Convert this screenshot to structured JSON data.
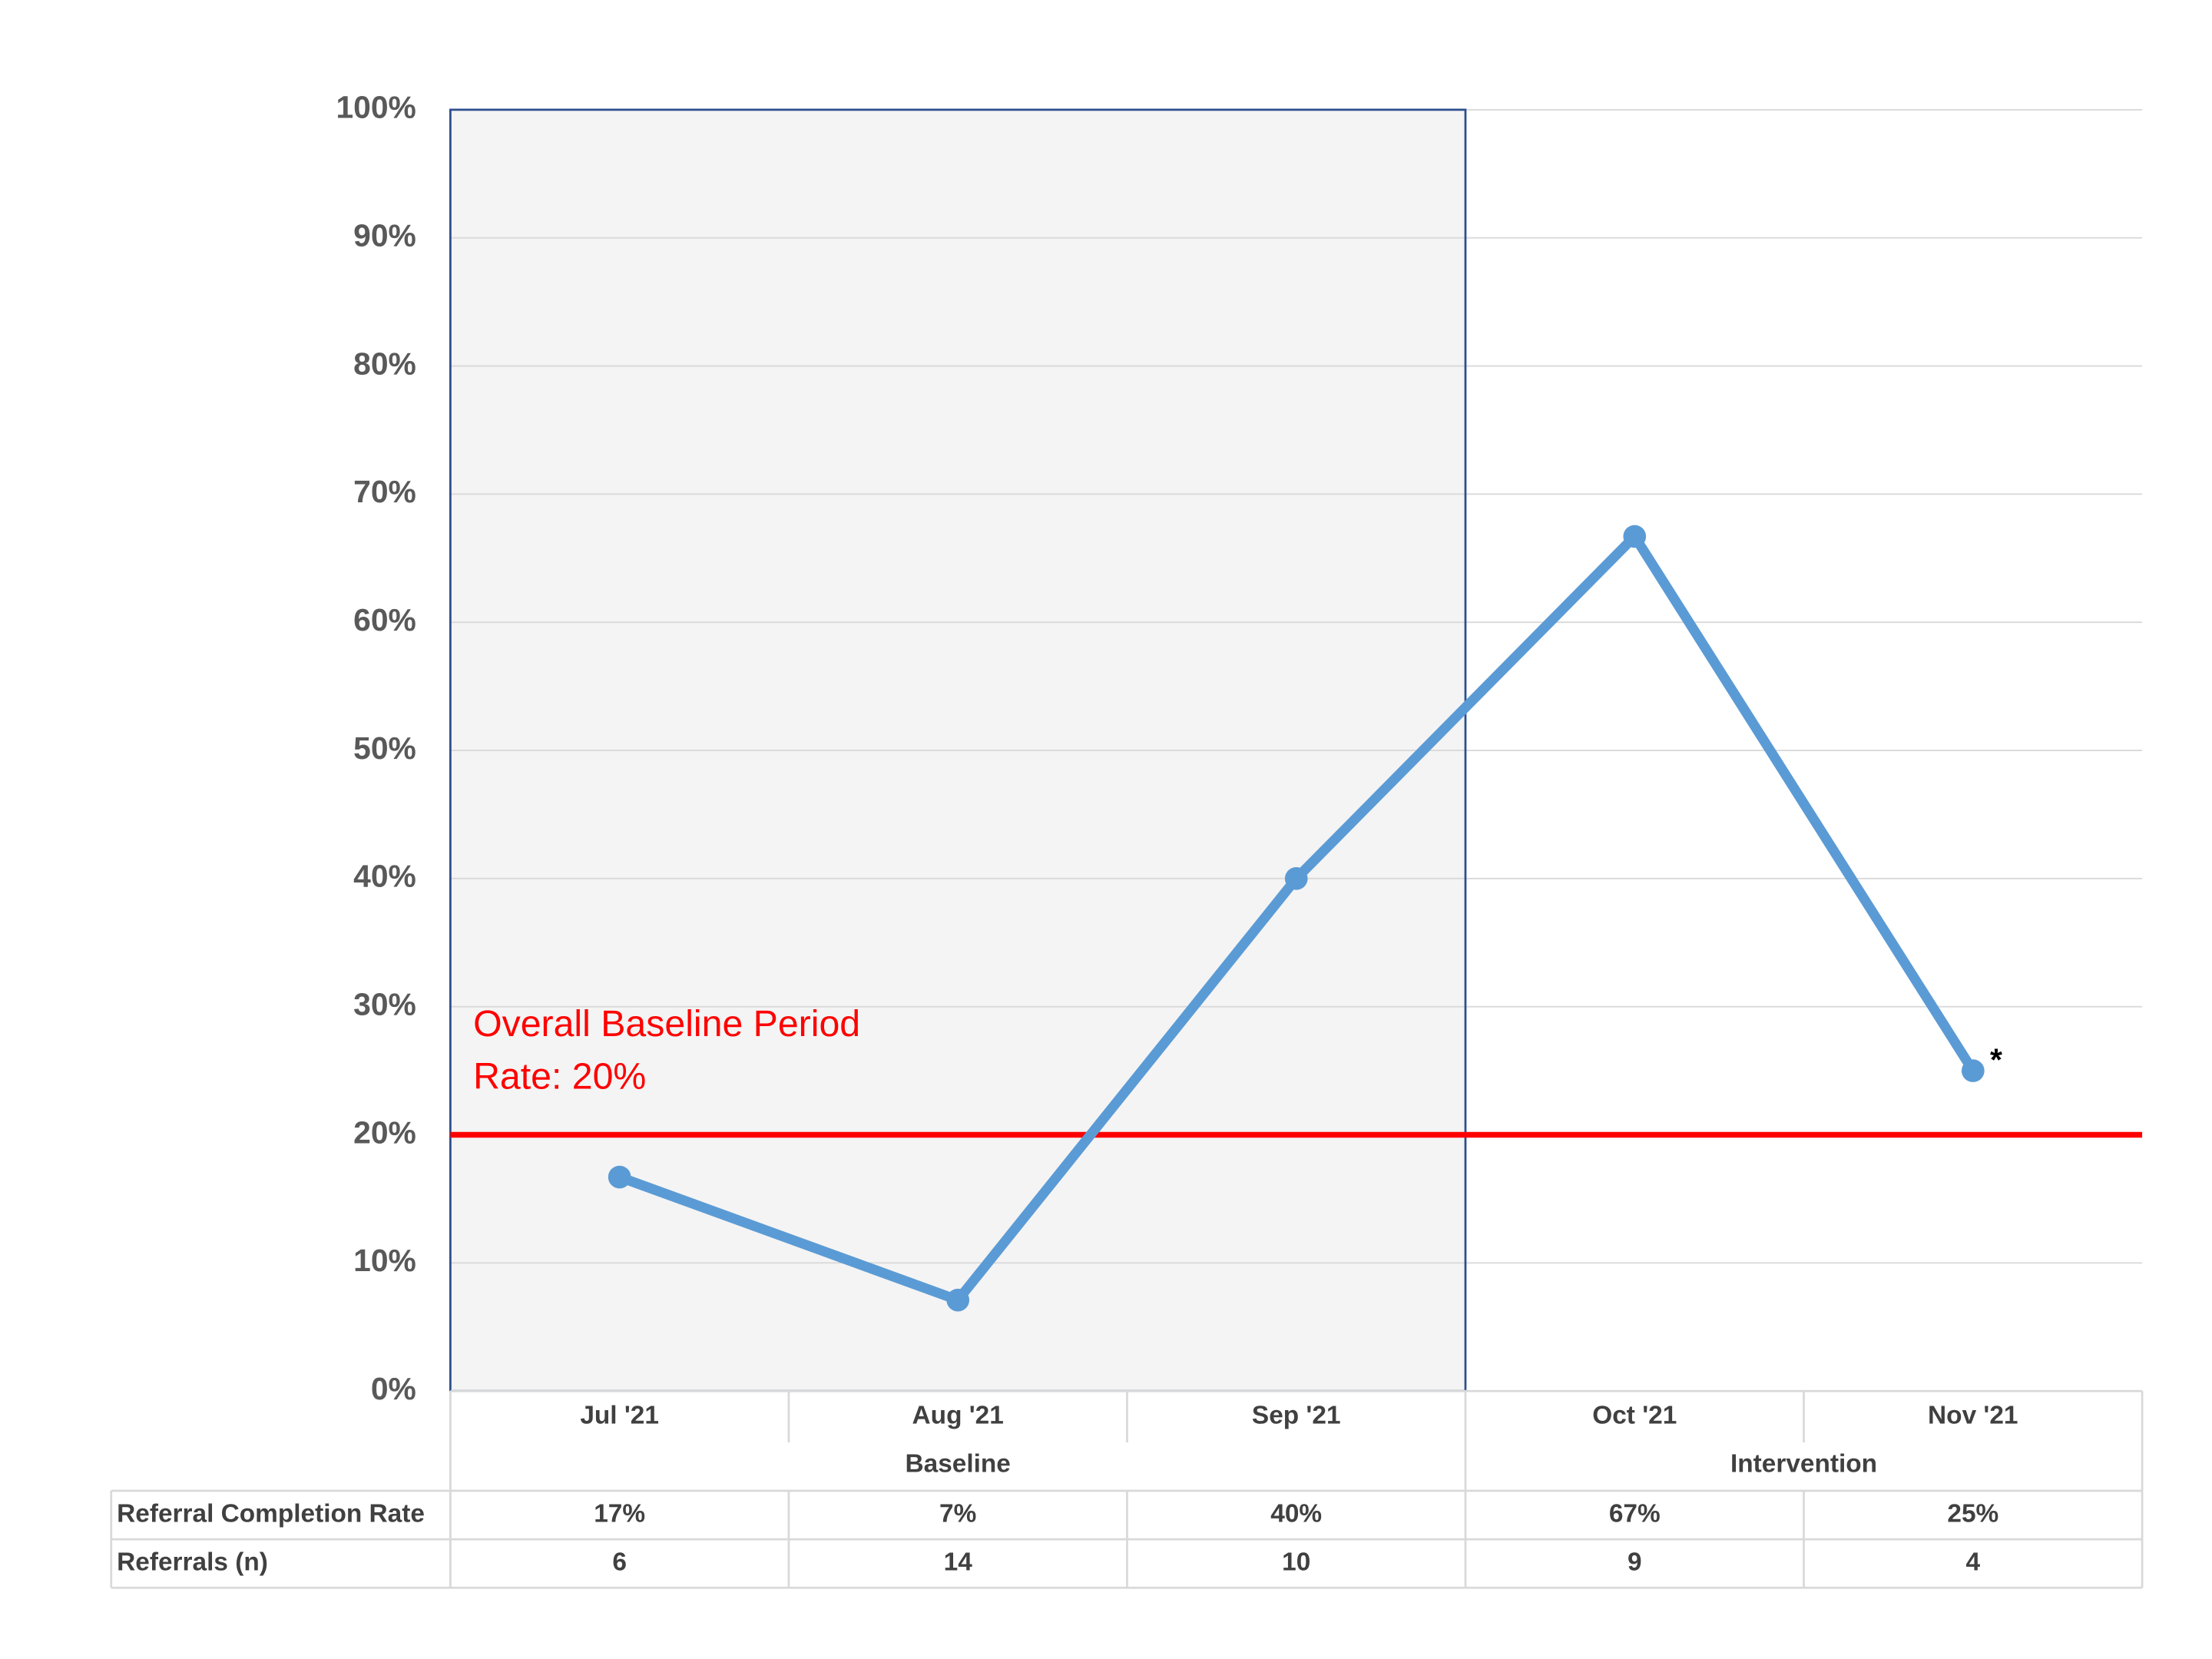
{
  "chart_data": {
    "type": "line",
    "categories": [
      "Jul '21",
      "Aug '21",
      "Sep '21",
      "Oct '21",
      "Nov '21"
    ],
    "phases": [
      "Baseline",
      "Baseline",
      "Baseline",
      "Intervention",
      "Intervention"
    ],
    "shaded_phase": "Baseline",
    "series": [
      {
        "name": "Referral Completion Rate",
        "color": "#5b9bd5",
        "values": [
          16.7,
          7.1,
          40,
          66.7,
          25
        ],
        "value_labels": [
          "17%",
          "7%",
          "40%",
          "67%",
          "25%"
        ]
      }
    ],
    "table_rows": [
      {
        "label": "Referrals (n)",
        "values": [
          6,
          14,
          10,
          9,
          4
        ]
      }
    ],
    "ylim": [
      0,
      100
    ],
    "yticks": [
      {
        "value": 0,
        "label": "0%"
      },
      {
        "value": 10,
        "label": "10%"
      },
      {
        "value": 20,
        "label": "20%"
      },
      {
        "value": 30,
        "label": "30%"
      },
      {
        "value": 40,
        "label": "40%"
      },
      {
        "value": 50,
        "label": "50%"
      },
      {
        "value": 60,
        "label": "60%"
      },
      {
        "value": 70,
        "label": "70%"
      },
      {
        "value": 80,
        "label": "80%"
      },
      {
        "value": 90,
        "label": "90%"
      },
      {
        "value": 100,
        "label": "100%"
      }
    ],
    "grid": true,
    "reference_line": {
      "value": 20,
      "color": "#ff0000",
      "label": [
        "Overall Baseline Period",
        "Rate: 20%"
      ]
    },
    "last_point_marker": "*"
  }
}
